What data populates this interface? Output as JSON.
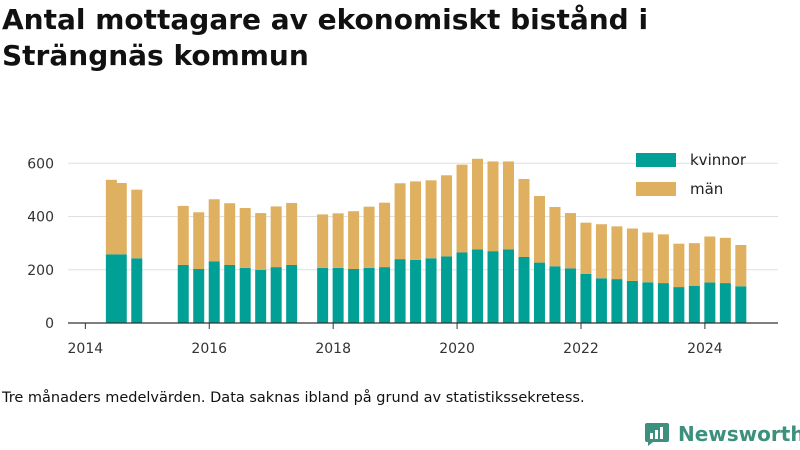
{
  "title": "Antal mottagare av ekonomiskt bistånd i Strängnäs kommun",
  "note": "Tre månaders medelvärden. Data saknas ibland på grund av statistikssekretess.",
  "brand": {
    "name": "Newsworthy",
    "icon": "newsworthy-logo-icon",
    "color": "#3d8f7e"
  },
  "colors": {
    "kvinnor": "#00a096",
    "man": "#deb05f",
    "grid": "#e0e0e0",
    "axis": "#333333"
  },
  "chart_data": {
    "type": "bar",
    "stacked": true,
    "ylim": [
      0,
      650
    ],
    "yticks": [
      0,
      200,
      400,
      600
    ],
    "xticks": [
      2014,
      2016,
      2018,
      2020,
      2022,
      2024
    ],
    "xlim": [
      2013.72,
      2025.18
    ],
    "grid": true,
    "legend_position": "top-right",
    "x": [
      2014.42,
      2014.58,
      2014.83,
      2015.58,
      2015.83,
      2016.08,
      2016.33,
      2016.58,
      2016.83,
      2017.08,
      2017.33,
      2017.83,
      2018.08,
      2018.33,
      2018.58,
      2018.83,
      2019.08,
      2019.33,
      2019.58,
      2019.83,
      2020.08,
      2020.33,
      2020.58,
      2020.83,
      2021.08,
      2021.33,
      2021.58,
      2021.83,
      2022.08,
      2022.33,
      2022.58,
      2022.83,
      2023.08,
      2023.33,
      2023.58,
      2023.83,
      2024.08,
      2024.33,
      2024.58
    ],
    "series": [
      {
        "name": "kvinnor",
        "color": "#00a096",
        "values": [
          258,
          258,
          243,
          218,
          203,
          232,
          218,
          207,
          200,
          210,
          218,
          207,
          207,
          203,
          207,
          210,
          240,
          237,
          243,
          250,
          265,
          277,
          270,
          277,
          248,
          227,
          213,
          205,
          185,
          168,
          165,
          158,
          153,
          150,
          135,
          140,
          152,
          150,
          138
        ]
      },
      {
        "name": "män",
        "color": "#deb05f",
        "values": [
          280,
          268,
          258,
          222,
          213,
          233,
          232,
          225,
          213,
          228,
          233,
          201,
          205,
          217,
          230,
          242,
          285,
          295,
          293,
          305,
          330,
          340,
          337,
          330,
          293,
          250,
          223,
          208,
          192,
          203,
          198,
          197,
          187,
          183,
          163,
          160,
          173,
          170,
          155
        ]
      }
    ]
  }
}
